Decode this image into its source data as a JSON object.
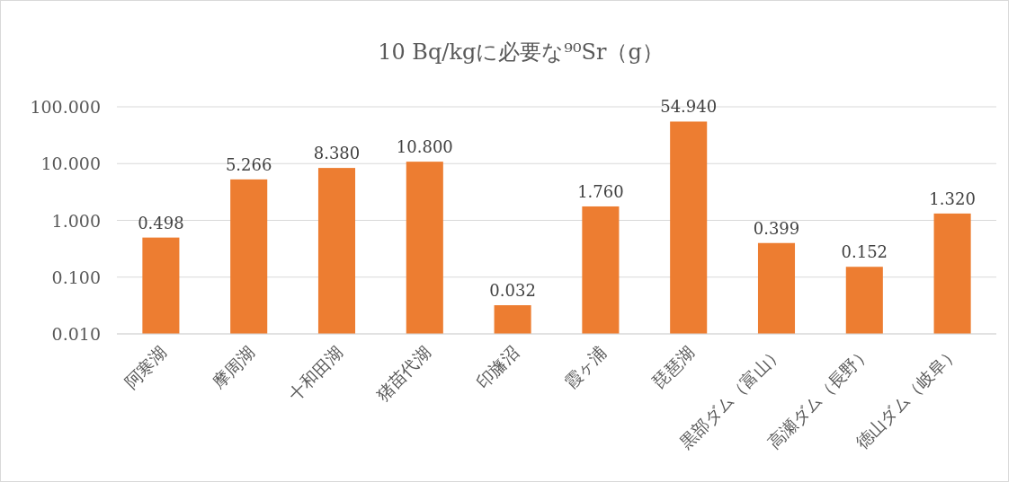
{
  "chart_data": {
    "type": "bar",
    "title": "10 Bq/kgに必要な⁹⁰Sr（g）",
    "categories": [
      "阿寒湖",
      "摩周湖",
      "十和田湖",
      "猪苗代湖",
      "印旛沼",
      "霞ヶ浦",
      "琵琶湖",
      "黒部ダム（富山）",
      "高瀬ダム（長野）",
      "徳山ダム（岐阜）"
    ],
    "values": [
      0.498,
      5.266,
      8.38,
      10.8,
      0.032,
      1.76,
      54.94,
      0.399,
      0.152,
      1.32
    ],
    "value_labels": [
      "0.498",
      "5.266",
      "8.380",
      "10.800",
      "0.032",
      "1.760",
      "54.940",
      "0.399",
      "0.152",
      "1.320"
    ],
    "color": "#ed7d31",
    "log": true,
    "ylim": [
      0.01,
      100
    ],
    "yticks": [
      {
        "value": 0.01,
        "label": "0.010"
      },
      {
        "value": 0.1,
        "label": "0.100"
      },
      {
        "value": 1,
        "label": "1.000"
      },
      {
        "value": 10,
        "label": "10.000"
      },
      {
        "value": 100,
        "label": "100.000"
      }
    ],
    "grid": "y"
  }
}
